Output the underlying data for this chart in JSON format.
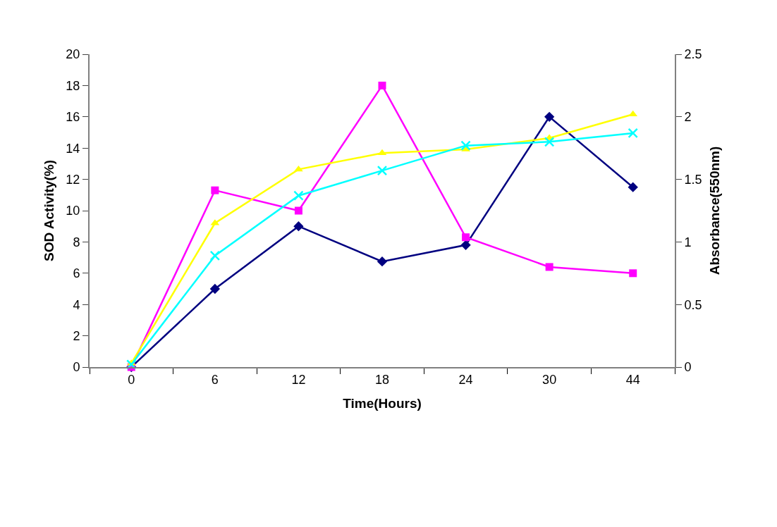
{
  "chart_data": {
    "type": "line",
    "xlabel": "Time(Hours)",
    "ylabel": "SOD Activity(%)",
    "y2label": "Absorbance(550nm)",
    "categories": [
      "0",
      "6",
      "12",
      "18",
      "24",
      "30",
      "44"
    ],
    "series": [
      {
        "color": "#000080",
        "marker": "diamond",
        "values": [
          0,
          5,
          9,
          6.75,
          7.8,
          16,
          11.5
        ]
      },
      {
        "color": "#ff00ff",
        "marker": "square",
        "values": [
          0,
          11.3,
          10,
          18,
          8.3,
          6.4,
          6.0
        ]
      },
      {
        "color": "#ffff00",
        "marker": "triangle",
        "axis": "y2",
        "values": [
          0.03,
          1.15,
          1.58,
          1.71,
          1.74,
          1.83,
          2.02
        ]
      },
      {
        "color": "#00ffff",
        "marker": "cross",
        "axis": "y2",
        "values": [
          0.02,
          0.89,
          1.37,
          1.57,
          1.77,
          1.8,
          1.87
        ]
      }
    ],
    "ylim": [
      0,
      20
    ],
    "yticks": [
      0,
      2,
      4,
      6,
      8,
      10,
      12,
      14,
      16,
      18,
      20
    ],
    "y2lim": [
      0,
      2.5
    ],
    "y2ticks": [
      0,
      0.5,
      1,
      1.5,
      2,
      2.5
    ]
  }
}
